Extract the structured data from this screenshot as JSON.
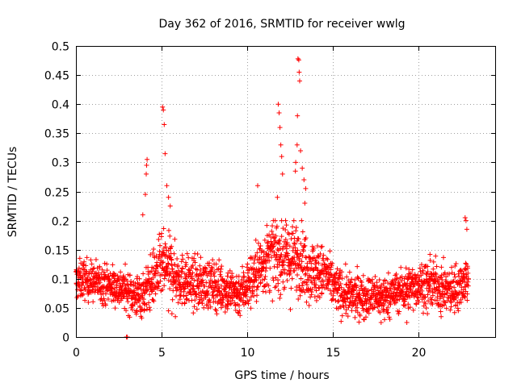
{
  "chart_data": {
    "type": "scatter",
    "title": "Day 362 of 2016, SRMTID for receiver wwlg",
    "xlabel": "GPS time / hours",
    "ylabel": "SRMTID / TECUs",
    "xlim": [
      0,
      24.5
    ],
    "ylim": [
      0,
      0.5
    ],
    "xticks": [
      0,
      5,
      10,
      15,
      20
    ],
    "xtick_labels": [
      "0",
      "5",
      "10",
      "15",
      "20"
    ],
    "yticks": [
      0,
      0.05,
      0.1,
      0.15,
      0.2,
      0.25,
      0.3,
      0.35,
      0.4,
      0.45,
      0.5
    ],
    "ytick_labels": [
      "0",
      "0.05",
      "0.1",
      "0.15",
      "0.2",
      "0.25",
      "0.3",
      "0.35",
      "0.4",
      "0.45",
      "0.5"
    ],
    "grid": true,
    "marker": "+",
    "series": [
      {
        "name": "SRMTID",
        "color": "#ff0000",
        "profile": [
          [
            0.0,
            0.095
          ],
          [
            0.5,
            0.1
          ],
          [
            1.0,
            0.095
          ],
          [
            2.0,
            0.09
          ],
          [
            3.0,
            0.08
          ],
          [
            3.5,
            0.07
          ],
          [
            4.0,
            0.075
          ],
          [
            4.5,
            0.1
          ],
          [
            5.0,
            0.12
          ],
          [
            5.5,
            0.12
          ],
          [
            6.0,
            0.1
          ],
          [
            7.0,
            0.09
          ],
          [
            8.0,
            0.09
          ],
          [
            9.0,
            0.08
          ],
          [
            9.5,
            0.075
          ],
          [
            10.0,
            0.09
          ],
          [
            10.5,
            0.11
          ],
          [
            11.0,
            0.13
          ],
          [
            11.5,
            0.14
          ],
          [
            12.0,
            0.14
          ],
          [
            12.5,
            0.13
          ],
          [
            13.0,
            0.14
          ],
          [
            13.5,
            0.12
          ],
          [
            14.0,
            0.11
          ],
          [
            14.5,
            0.11
          ],
          [
            15.0,
            0.09
          ],
          [
            15.5,
            0.075
          ],
          [
            16.0,
            0.07
          ],
          [
            17.0,
            0.07
          ],
          [
            18.0,
            0.07
          ],
          [
            19.0,
            0.08
          ],
          [
            20.0,
            0.09
          ],
          [
            21.0,
            0.09
          ],
          [
            21.5,
            0.08
          ],
          [
            22.0,
            0.08
          ],
          [
            22.8,
            0.1
          ]
        ],
        "spread": [
          [
            0.0,
            0.03
          ],
          [
            3.0,
            0.03
          ],
          [
            4.0,
            0.035
          ],
          [
            5.0,
            0.05
          ],
          [
            6.0,
            0.04
          ],
          [
            9.5,
            0.035
          ],
          [
            11.0,
            0.05
          ],
          [
            12.5,
            0.06
          ],
          [
            14.0,
            0.045
          ],
          [
            15.0,
            0.035
          ],
          [
            18.0,
            0.03
          ],
          [
            21.0,
            0.035
          ],
          [
            22.8,
            0.035
          ]
        ],
        "time_range": [
          0.0,
          22.9
        ],
        "sample_count": 2300,
        "peaks": [
          {
            "x": 3.9,
            "y": 0.21
          },
          {
            "x": 4.05,
            "y": 0.245
          },
          {
            "x": 4.1,
            "y": 0.28
          },
          {
            "x": 4.12,
            "y": 0.295
          },
          {
            "x": 4.15,
            "y": 0.305
          },
          {
            "x": 5.05,
            "y": 0.395
          },
          {
            "x": 5.1,
            "y": 0.39
          },
          {
            "x": 5.15,
            "y": 0.365
          },
          {
            "x": 5.2,
            "y": 0.315
          },
          {
            "x": 5.3,
            "y": 0.26
          },
          {
            "x": 5.4,
            "y": 0.24
          },
          {
            "x": 5.5,
            "y": 0.225
          },
          {
            "x": 10.6,
            "y": 0.26
          },
          {
            "x": 11.8,
            "y": 0.4
          },
          {
            "x": 11.85,
            "y": 0.385
          },
          {
            "x": 11.9,
            "y": 0.36
          },
          {
            "x": 11.95,
            "y": 0.33
          },
          {
            "x": 12.0,
            "y": 0.31
          },
          {
            "x": 12.05,
            "y": 0.28
          },
          {
            "x": 11.75,
            "y": 0.24
          },
          {
            "x": 12.8,
            "y": 0.285
          },
          {
            "x": 12.82,
            "y": 0.3
          },
          {
            "x": 12.9,
            "y": 0.33
          },
          {
            "x": 12.92,
            "y": 0.38
          },
          {
            "x": 12.95,
            "y": 0.478
          },
          {
            "x": 13.0,
            "y": 0.476
          },
          {
            "x": 13.02,
            "y": 0.455
          },
          {
            "x": 13.05,
            "y": 0.44
          },
          {
            "x": 13.1,
            "y": 0.32
          },
          {
            "x": 13.2,
            "y": 0.29
          },
          {
            "x": 13.3,
            "y": 0.27
          },
          {
            "x": 13.35,
            "y": 0.23
          },
          {
            "x": 13.4,
            "y": 0.255
          },
          {
            "x": 22.7,
            "y": 0.205
          },
          {
            "x": 22.75,
            "y": 0.2
          },
          {
            "x": 22.8,
            "y": 0.185
          },
          {
            "x": 2.95,
            "y": 0.0
          },
          {
            "x": 3.0,
            "y": 0.0
          }
        ],
        "lows": [
          {
            "x": 5.4,
            "y": 0.045
          },
          {
            "x": 5.6,
            "y": 0.04
          },
          {
            "x": 5.8,
            "y": 0.035
          },
          {
            "x": 17.8,
            "y": 0.025
          },
          {
            "x": 18.0,
            "y": 0.03
          },
          {
            "x": 19.3,
            "y": 0.025
          },
          {
            "x": 20.5,
            "y": 0.04
          },
          {
            "x": 21.3,
            "y": 0.035
          }
        ]
      }
    ]
  }
}
